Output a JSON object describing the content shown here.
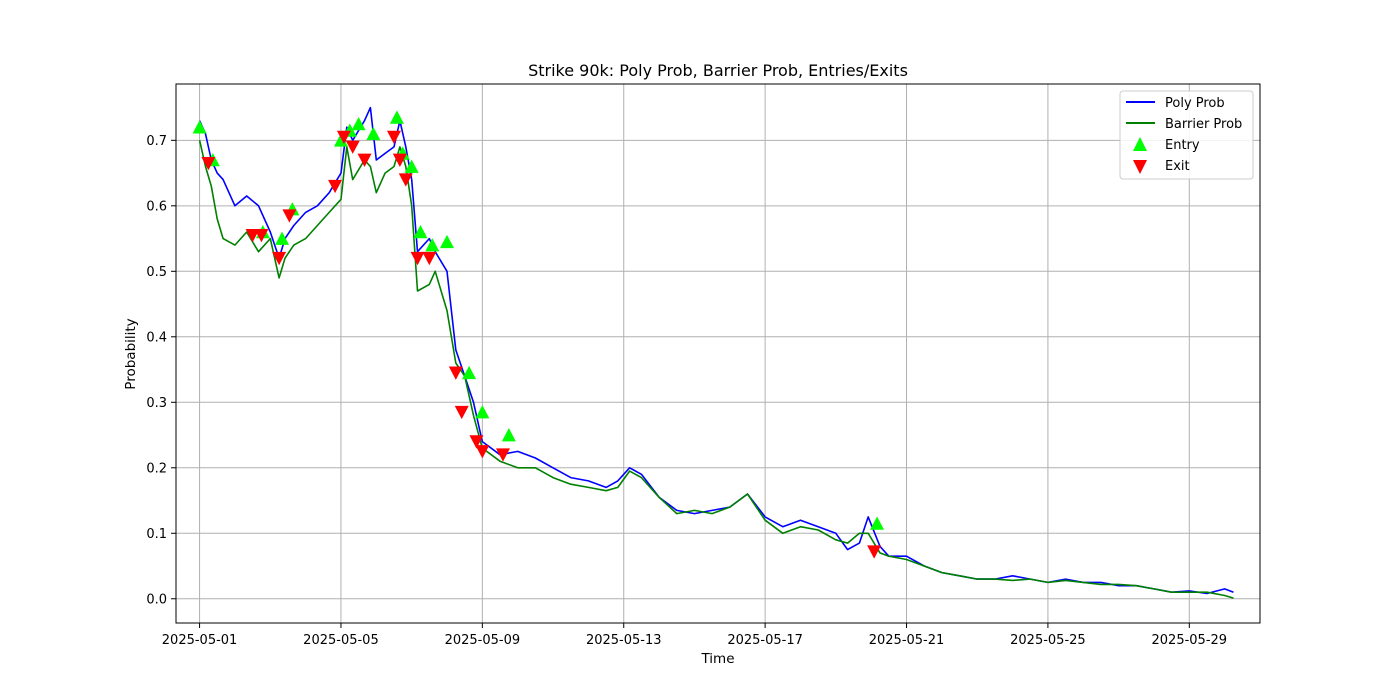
{
  "chart_data": {
    "type": "line",
    "title": "Strike 90k: Poly Prob, Barrier Prob, Entries/Exits",
    "xlabel": "Time",
    "ylabel": "Probability",
    "x_type": "date",
    "xlim": [
      "2025-04-30T08:00",
      "2025-05-31T00:00"
    ],
    "ylim": [
      -0.037,
      0.786
    ],
    "xticks": [
      "2025-05-01",
      "2025-05-05",
      "2025-05-09",
      "2025-05-13",
      "2025-05-17",
      "2025-05-21",
      "2025-05-25",
      "2025-05-29"
    ],
    "yticks": [
      0.0,
      0.1,
      0.2,
      0.3,
      0.4,
      0.5,
      0.6,
      0.7
    ],
    "ytick_labels": [
      "0.0",
      "0.1",
      "0.2",
      "0.3",
      "0.4",
      "0.5",
      "0.6",
      "0.7"
    ],
    "grid": true,
    "legend_position": "top-right",
    "series": [
      {
        "name": "Poly Prob",
        "color": "#0000ff",
        "style": "line",
        "x": [
          "2025-05-01T00:00",
          "2025-05-01T04:00",
          "2025-05-01T08:00",
          "2025-05-01T12:00",
          "2025-05-01T16:00",
          "2025-05-02T00:00",
          "2025-05-02T08:00",
          "2025-05-02T16:00",
          "2025-05-03T00:00",
          "2025-05-03T06:00",
          "2025-05-03T10:00",
          "2025-05-03T16:00",
          "2025-05-04T00:00",
          "2025-05-04T08:00",
          "2025-05-04T16:00",
          "2025-05-05T00:00",
          "2025-05-05T04:00",
          "2025-05-05T08:00",
          "2025-05-05T16:00",
          "2025-05-05T20:00",
          "2025-05-06T00:00",
          "2025-05-06T06:00",
          "2025-05-06T12:00",
          "2025-05-06T16:00",
          "2025-05-06T20:00",
          "2025-05-07T00:00",
          "2025-05-07T04:00",
          "2025-05-07T12:00",
          "2025-05-07T16:00",
          "2025-05-08T00:00",
          "2025-05-08T06:00",
          "2025-05-08T12:00",
          "2025-05-08T18:00",
          "2025-05-09T00:00",
          "2025-05-09T12:00",
          "2025-05-10T00:00",
          "2025-05-10T12:00",
          "2025-05-11T00:00",
          "2025-05-11T12:00",
          "2025-05-12T00:00",
          "2025-05-12T12:00",
          "2025-05-12T20:00",
          "2025-05-13T04:00",
          "2025-05-13T12:00",
          "2025-05-14T00:00",
          "2025-05-14T12:00",
          "2025-05-15T00:00",
          "2025-05-15T12:00",
          "2025-05-16T00:00",
          "2025-05-16T12:00",
          "2025-05-17T00:00",
          "2025-05-17T12:00",
          "2025-05-18T00:00",
          "2025-05-18T12:00",
          "2025-05-19T00:00",
          "2025-05-19T08:00",
          "2025-05-19T16:00",
          "2025-05-19T22:00",
          "2025-05-20T06:00",
          "2025-05-20T12:00",
          "2025-05-21T00:00",
          "2025-05-21T12:00",
          "2025-05-22T00:00",
          "2025-05-22T12:00",
          "2025-05-23T00:00",
          "2025-05-23T12:00",
          "2025-05-24T00:00",
          "2025-05-24T12:00",
          "2025-05-25T00:00",
          "2025-05-25T12:00",
          "2025-05-26T00:00",
          "2025-05-26T12:00",
          "2025-05-27T00:00",
          "2025-05-27T12:00",
          "2025-05-28T00:00",
          "2025-05-28T12:00",
          "2025-05-29T00:00",
          "2025-05-29T12:00",
          "2025-05-30T00:00",
          "2025-05-30T06:00"
        ],
        "y": [
          0.73,
          0.71,
          0.67,
          0.65,
          0.64,
          0.6,
          0.615,
          0.6,
          0.56,
          0.52,
          0.55,
          0.57,
          0.59,
          0.6,
          0.62,
          0.65,
          0.72,
          0.7,
          0.73,
          0.75,
          0.67,
          0.68,
          0.69,
          0.73,
          0.69,
          0.64,
          0.53,
          0.55,
          0.53,
          0.5,
          0.38,
          0.34,
          0.3,
          0.24,
          0.22,
          0.225,
          0.215,
          0.2,
          0.185,
          0.18,
          0.17,
          0.18,
          0.2,
          0.19,
          0.155,
          0.135,
          0.13,
          0.135,
          0.14,
          0.16,
          0.125,
          0.11,
          0.12,
          0.11,
          0.1,
          0.075,
          0.085,
          0.125,
          0.08,
          0.065,
          0.065,
          0.05,
          0.04,
          0.035,
          0.03,
          0.03,
          0.035,
          0.03,
          0.025,
          0.03,
          0.025,
          0.025,
          0.02,
          0.02,
          0.015,
          0.01,
          0.012,
          0.008,
          0.015,
          0.01
        ]
      },
      {
        "name": "Barrier Prob",
        "color": "#008000",
        "style": "line",
        "x": [
          "2025-05-01T00:00",
          "2025-05-01T04:00",
          "2025-05-01T08:00",
          "2025-05-01T12:00",
          "2025-05-01T16:00",
          "2025-05-02T00:00",
          "2025-05-02T08:00",
          "2025-05-02T16:00",
          "2025-05-03T00:00",
          "2025-05-03T06:00",
          "2025-05-03T10:00",
          "2025-05-03T16:00",
          "2025-05-04T00:00",
          "2025-05-04T08:00",
          "2025-05-04T16:00",
          "2025-05-05T00:00",
          "2025-05-05T04:00",
          "2025-05-05T08:00",
          "2025-05-05T16:00",
          "2025-05-05T20:00",
          "2025-05-06T00:00",
          "2025-05-06T06:00",
          "2025-05-06T12:00",
          "2025-05-06T16:00",
          "2025-05-06T20:00",
          "2025-05-07T00:00",
          "2025-05-07T04:00",
          "2025-05-07T12:00",
          "2025-05-07T16:00",
          "2025-05-08T00:00",
          "2025-05-08T06:00",
          "2025-05-08T12:00",
          "2025-05-08T18:00",
          "2025-05-09T00:00",
          "2025-05-09T12:00",
          "2025-05-10T00:00",
          "2025-05-10T12:00",
          "2025-05-11T00:00",
          "2025-05-11T12:00",
          "2025-05-12T00:00",
          "2025-05-12T12:00",
          "2025-05-12T20:00",
          "2025-05-13T04:00",
          "2025-05-13T12:00",
          "2025-05-14T00:00",
          "2025-05-14T12:00",
          "2025-05-15T00:00",
          "2025-05-15T12:00",
          "2025-05-16T00:00",
          "2025-05-16T12:00",
          "2025-05-17T00:00",
          "2025-05-17T12:00",
          "2025-05-18T00:00",
          "2025-05-18T12:00",
          "2025-05-19T00:00",
          "2025-05-19T08:00",
          "2025-05-19T16:00",
          "2025-05-19T22:00",
          "2025-05-20T06:00",
          "2025-05-20T12:00",
          "2025-05-21T00:00",
          "2025-05-21T12:00",
          "2025-05-22T00:00",
          "2025-05-22T12:00",
          "2025-05-23T00:00",
          "2025-05-23T12:00",
          "2025-05-24T00:00",
          "2025-05-24T12:00",
          "2025-05-25T00:00",
          "2025-05-25T12:00",
          "2025-05-26T00:00",
          "2025-05-26T12:00",
          "2025-05-27T00:00",
          "2025-05-27T12:00",
          "2025-05-28T00:00",
          "2025-05-28T12:00",
          "2025-05-29T00:00",
          "2025-05-29T12:00",
          "2025-05-30T00:00",
          "2025-05-30T06:00"
        ],
        "y": [
          0.7,
          0.66,
          0.63,
          0.58,
          0.55,
          0.54,
          0.56,
          0.53,
          0.55,
          0.49,
          0.52,
          0.54,
          0.55,
          0.57,
          0.59,
          0.61,
          0.69,
          0.64,
          0.67,
          0.66,
          0.62,
          0.65,
          0.66,
          0.69,
          0.66,
          0.6,
          0.47,
          0.48,
          0.5,
          0.44,
          0.36,
          0.34,
          0.28,
          0.23,
          0.21,
          0.2,
          0.2,
          0.185,
          0.175,
          0.17,
          0.165,
          0.17,
          0.195,
          0.185,
          0.155,
          0.13,
          0.135,
          0.13,
          0.14,
          0.16,
          0.12,
          0.1,
          0.11,
          0.105,
          0.09,
          0.085,
          0.1,
          0.1,
          0.07,
          0.065,
          0.06,
          0.05,
          0.04,
          0.035,
          0.03,
          0.03,
          0.028,
          0.03,
          0.025,
          0.028,
          0.025,
          0.022,
          0.022,
          0.02,
          0.015,
          0.01,
          0.01,
          0.01,
          0.005,
          0.001
        ]
      },
      {
        "name": "Entry",
        "color": "#00ff00",
        "style": "marker-up",
        "x": [
          "2025-05-01T00:00",
          "2025-05-01T09:00",
          "2025-05-02T19:00",
          "2025-05-03T08:00",
          "2025-05-03T15:00",
          "2025-05-05T00:00",
          "2025-05-05T06:00",
          "2025-05-05T12:00",
          "2025-05-05T22:00",
          "2025-05-06T14:00",
          "2025-05-06T18:00",
          "2025-05-07T00:00",
          "2025-05-07T06:00",
          "2025-05-07T14:00",
          "2025-05-08T00:00",
          "2025-05-08T15:00",
          "2025-05-09T00:00",
          "2025-05-09T18:00",
          "2025-05-20T04:00"
        ],
        "y": [
          0.72,
          0.67,
          0.56,
          0.55,
          0.595,
          0.7,
          0.715,
          0.725,
          0.71,
          0.735,
          0.68,
          0.66,
          0.56,
          0.54,
          0.545,
          0.345,
          0.285,
          0.25,
          0.115
        ]
      },
      {
        "name": "Exit",
        "color": "#ff0000",
        "style": "marker-down",
        "x": [
          "2025-05-01T06:00",
          "2025-05-02T12:00",
          "2025-05-02T18:00",
          "2025-05-03T06:00",
          "2025-05-03T13:00",
          "2025-05-04T20:00",
          "2025-05-05T02:00",
          "2025-05-05T08:00",
          "2025-05-05T16:00",
          "2025-05-06T12:00",
          "2025-05-06T16:00",
          "2025-05-06T20:00",
          "2025-05-07T04:00",
          "2025-05-07T12:00",
          "2025-05-08T06:00",
          "2025-05-08T10:00",
          "2025-05-08T20:00",
          "2025-05-09T00:00",
          "2025-05-09T14:00",
          "2025-05-20T02:00"
        ],
        "y": [
          0.665,
          0.555,
          0.555,
          0.52,
          0.585,
          0.63,
          0.705,
          0.69,
          0.67,
          0.705,
          0.67,
          0.64,
          0.52,
          0.52,
          0.345,
          0.285,
          0.24,
          0.225,
          0.22,
          0.072
        ]
      }
    ]
  }
}
